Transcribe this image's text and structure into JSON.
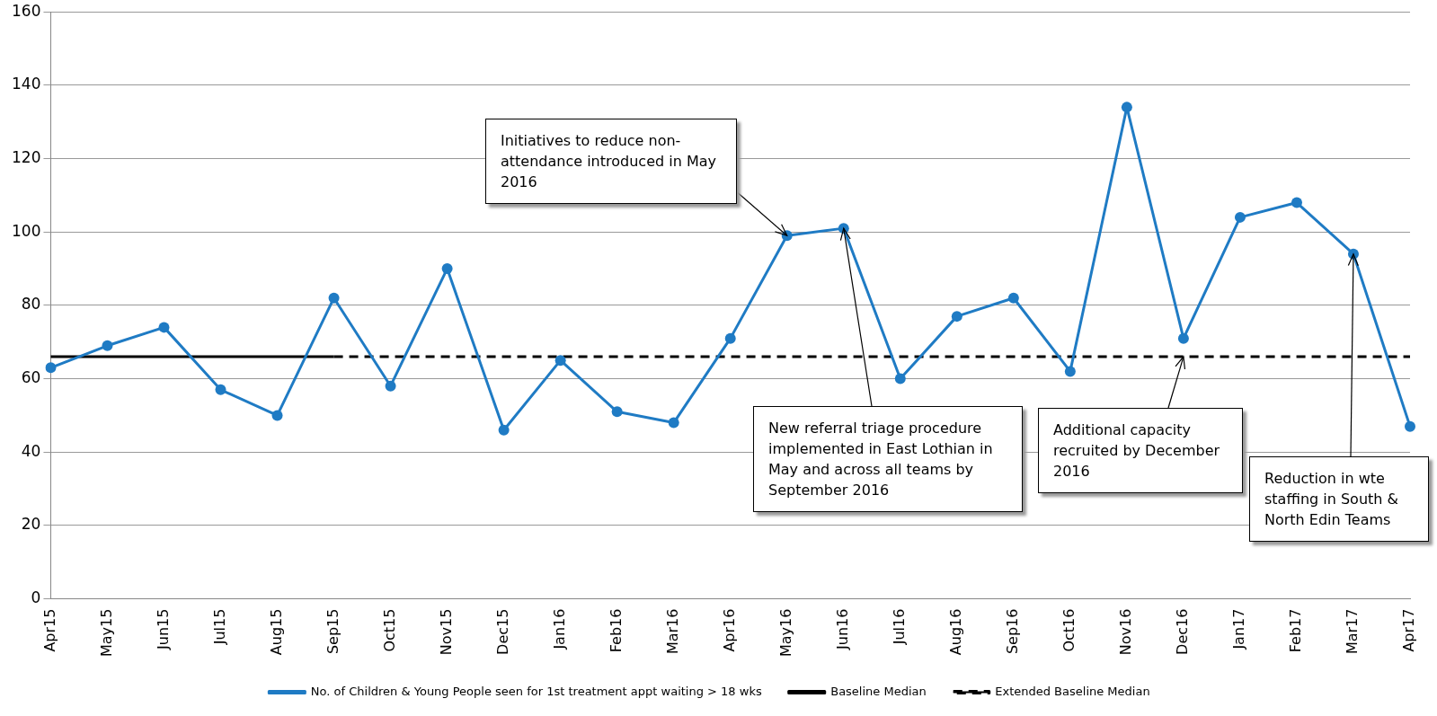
{
  "chart_data": {
    "type": "line",
    "categories": [
      "Apr15",
      "May15",
      "Jun15",
      "Jul15",
      "Aug15",
      "Sep15",
      "Oct15",
      "Nov15",
      "Dec15",
      "Jan16",
      "Feb16",
      "Mar16",
      "Apr16",
      "May16",
      "Jun16",
      "Jul16",
      "Aug16",
      "Sep16",
      "Oct16",
      "Nov16",
      "Dec16",
      "Jan17",
      "Feb17",
      "Mar17",
      "Apr17"
    ],
    "series": [
      {
        "name": "No. of Children & Young People seen for 1st treatment appt waiting > 18 wks",
        "color": "#1f7bc4",
        "marker": "circle",
        "line_style": "solid",
        "values": [
          63,
          69,
          74,
          57,
          50,
          82,
          58,
          90,
          46,
          65,
          51,
          48,
          71,
          99,
          101,
          60,
          77,
          82,
          62,
          134,
          71,
          104,
          108,
          94,
          47
        ]
      },
      {
        "name": "Baseline Median",
        "color": "#000000",
        "marker": "none",
        "line_style": "solid",
        "values": [
          66,
          66,
          66,
          66,
          66,
          66,
          null,
          null,
          null,
          null,
          null,
          null,
          null,
          null,
          null,
          null,
          null,
          null,
          null,
          null,
          null,
          null,
          null,
          null,
          null
        ]
      },
      {
        "name": "Extended Baseline Median",
        "color": "#000000",
        "marker": "none",
        "line_style": "dashed",
        "values": [
          null,
          null,
          null,
          null,
          null,
          66,
          66,
          66,
          66,
          66,
          66,
          66,
          66,
          66,
          66,
          66,
          66,
          66,
          66,
          66,
          66,
          66,
          66,
          66,
          66
        ]
      }
    ],
    "ylim": [
      0,
      160
    ],
    "yticks": [
      0,
      20,
      40,
      60,
      80,
      100,
      120,
      140,
      160
    ],
    "grid": "y",
    "legend": "bottom",
    "annotations": [
      {
        "text": "Initiatives to reduce non-attendance introduced in May 2016",
        "x": "May16",
        "y": 99
      },
      {
        "text": "New referral triage procedure implemented in East Lothian in May and across all teams by September 2016",
        "x": "Jun16",
        "y": 101
      },
      {
        "text": "Additional capacity recruited by December 2016",
        "x": "Dec16",
        "y": 66
      },
      {
        "text": "Reduction in wte staffing in South & North Edin Teams",
        "x": "Mar17",
        "y": 94
      }
    ]
  }
}
